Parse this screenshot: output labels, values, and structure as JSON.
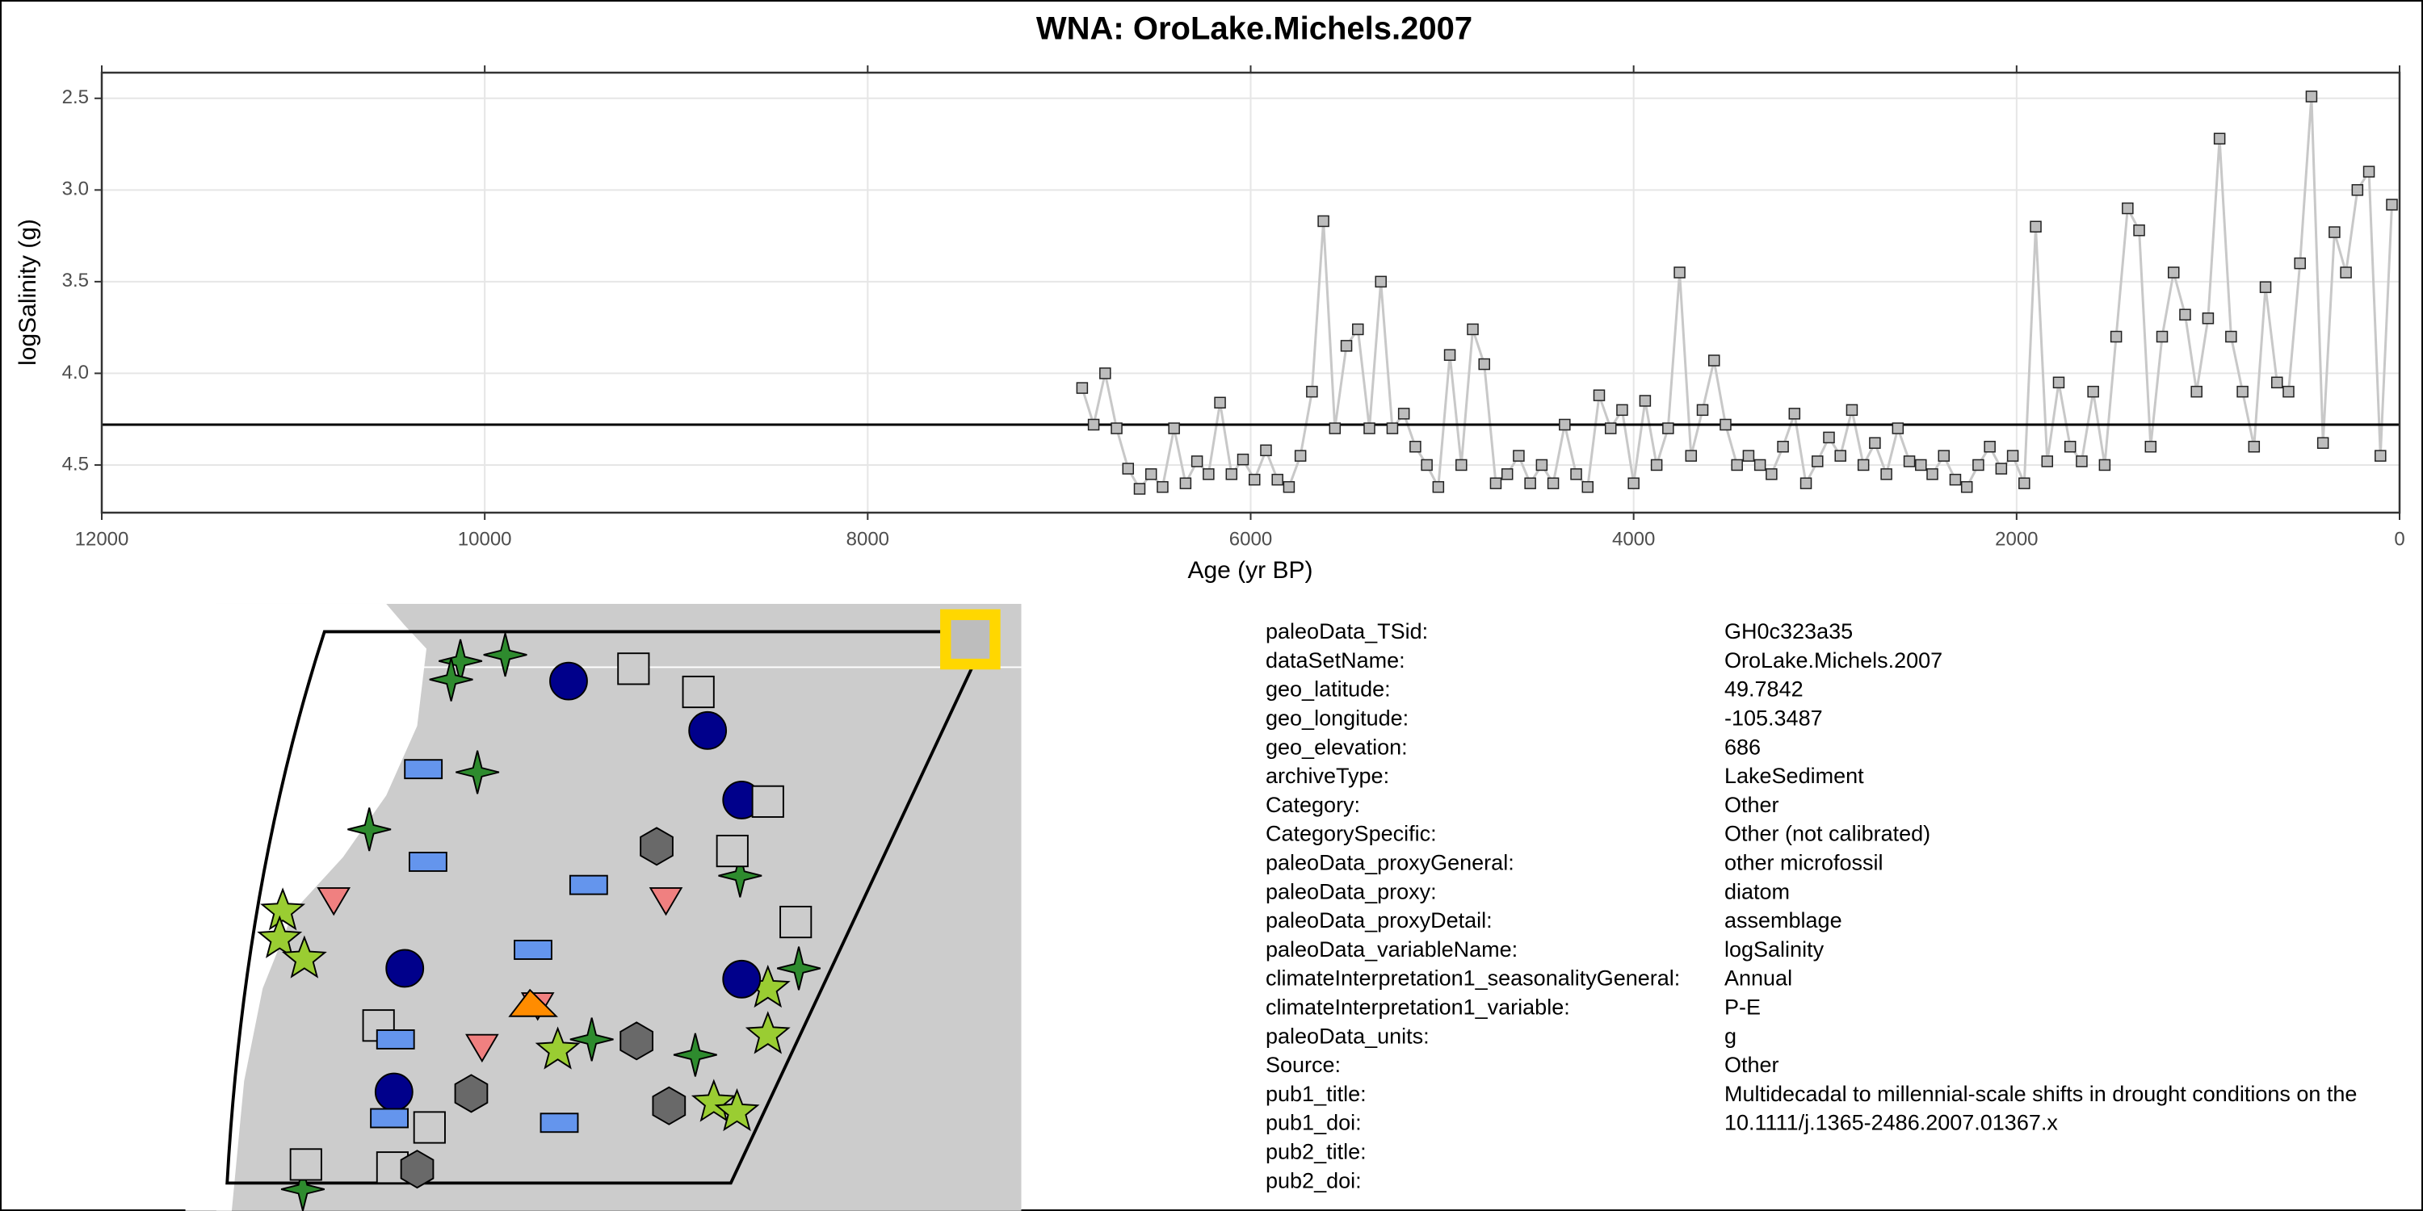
{
  "chart_data": {
    "type": "line",
    "title": "WNA: OroLake.Michels.2007",
    "x_label": "Age (yr BP)",
    "y_label": "logSalinity (g)",
    "xlim": [
      12000,
      0
    ],
    "xticks": [
      12000,
      10000,
      8000,
      6000,
      4000,
      2000,
      0
    ],
    "ylim": [
      4.76,
      2.36
    ],
    "yticks": [
      2.5,
      {
        "value": 3,
        "label": "3.0"
      },
      3.5,
      {
        "value": 4,
        "label": "4.0"
      },
      4.5
    ],
    "grid": true,
    "color": "#c8c8c8",
    "marker_color": "#bdbdbd",
    "hline": 4.28,
    "x": [
      6880,
      6820,
      6760,
      6700,
      6640,
      6580,
      6520,
      6460,
      6400,
      6340,
      6280,
      6220,
      6160,
      6100,
      6040,
      5980,
      5920,
      5860,
      5800,
      5740,
      5680,
      5620,
      5560,
      5500,
      5440,
      5380,
      5320,
      5260,
      5200,
      5140,
      5080,
      5020,
      4960,
      4900,
      4840,
      4780,
      4720,
      4660,
      4600,
      4540,
      4480,
      4420,
      4360,
      4300,
      4240,
      4180,
      4120,
      4060,
      4000,
      3940,
      3880,
      3820,
      3760,
      3700,
      3640,
      3580,
      3520,
      3460,
      3400,
      3340,
      3280,
      3220,
      3160,
      3100,
      3040,
      2980,
      2920,
      2860,
      2800,
      2740,
      2680,
      2620,
      2560,
      2500,
      2440,
      2380,
      2320,
      2260,
      2200,
      2140,
      2080,
      2020,
      1960,
      1900,
      1840,
      1780,
      1720,
      1660,
      1600,
      1540,
      1480,
      1420,
      1360,
      1300,
      1240,
      1180,
      1120,
      1060,
      1000,
      940,
      880,
      820,
      760,
      700,
      640,
      580,
      520,
      460,
      400,
      340,
      280,
      220,
      160,
      100,
      40
    ],
    "values": [
      4.08,
      4.28,
      4.0,
      4.3,
      4.52,
      4.63,
      4.55,
      4.62,
      4.3,
      4.6,
      4.48,
      4.55,
      4.16,
      4.55,
      4.47,
      4.58,
      4.42,
      4.58,
      4.62,
      4.45,
      4.1,
      3.17,
      4.3,
      3.85,
      3.76,
      4.3,
      3.5,
      4.3,
      4.22,
      4.4,
      4.5,
      4.62,
      3.9,
      4.5,
      3.76,
      3.95,
      4.6,
      4.55,
      4.45,
      4.6,
      4.5,
      4.6,
      4.28,
      4.55,
      4.62,
      4.12,
      4.3,
      4.2,
      4.6,
      4.15,
      4.5,
      4.3,
      3.45,
      4.45,
      4.2,
      3.93,
      4.28,
      4.5,
      4.45,
      4.5,
      4.55,
      4.4,
      4.22,
      4.6,
      4.48,
      4.35,
      4.45,
      4.2,
      4.5,
      4.38,
      4.55,
      4.3,
      4.48,
      4.5,
      4.55,
      4.45,
      4.58,
      4.62,
      4.5,
      4.4,
      4.52,
      4.45,
      4.6,
      3.2,
      4.48,
      4.05,
      4.4,
      4.48,
      4.1,
      4.5,
      3.8,
      3.1,
      3.22,
      4.4,
      3.8,
      3.45,
      3.68,
      4.1,
      3.7,
      2.72,
      3.8,
      4.1,
      4.4,
      3.53,
      4.05,
      4.1,
      3.4,
      2.49,
      4.38,
      3.23,
      3.45,
      3.0,
      2.9,
      4.45,
      3.08
    ]
  },
  "metadata": {
    "rows": [
      [
        "paleoData_TSid:",
        "GH0c323a35"
      ],
      [
        "dataSetName:",
        "OroLake.Michels.2007"
      ],
      [
        "geo_latitude:",
        "49.7842"
      ],
      [
        "geo_longitude:",
        "-105.3487"
      ],
      [
        "geo_elevation:",
        "686"
      ],
      [
        "archiveType:",
        "LakeSediment"
      ],
      [
        "Category:",
        "Other"
      ],
      [
        "CategorySpecific:",
        "Other (not calibrated)"
      ],
      [
        "paleoData_proxyGeneral:",
        "other microfossil"
      ],
      [
        "paleoData_proxy:",
        "diatom"
      ],
      [
        "paleoData_proxyDetail:",
        "assemblage"
      ],
      [
        "paleoData_variableName:",
        "logSalinity"
      ],
      [
        "climateInterpretation1_seasonalityGeneral:",
        "Annual"
      ],
      [
        "climateInterpretation1_variable:",
        "P-E"
      ],
      [
        "paleoData_units:",
        "g"
      ],
      [
        "Source:",
        "Other"
      ],
      [
        "pub1_title:",
        "Multidecadal to millennial-scale shifts in drought conditions on the"
      ],
      [
        "pub1_doi:",
        "10.1111/j.1365-2486.2007.01367.x"
      ],
      [
        "pub2_title:"
      ],
      [
        "pub2_doi:"
      ]
    ]
  }
}
